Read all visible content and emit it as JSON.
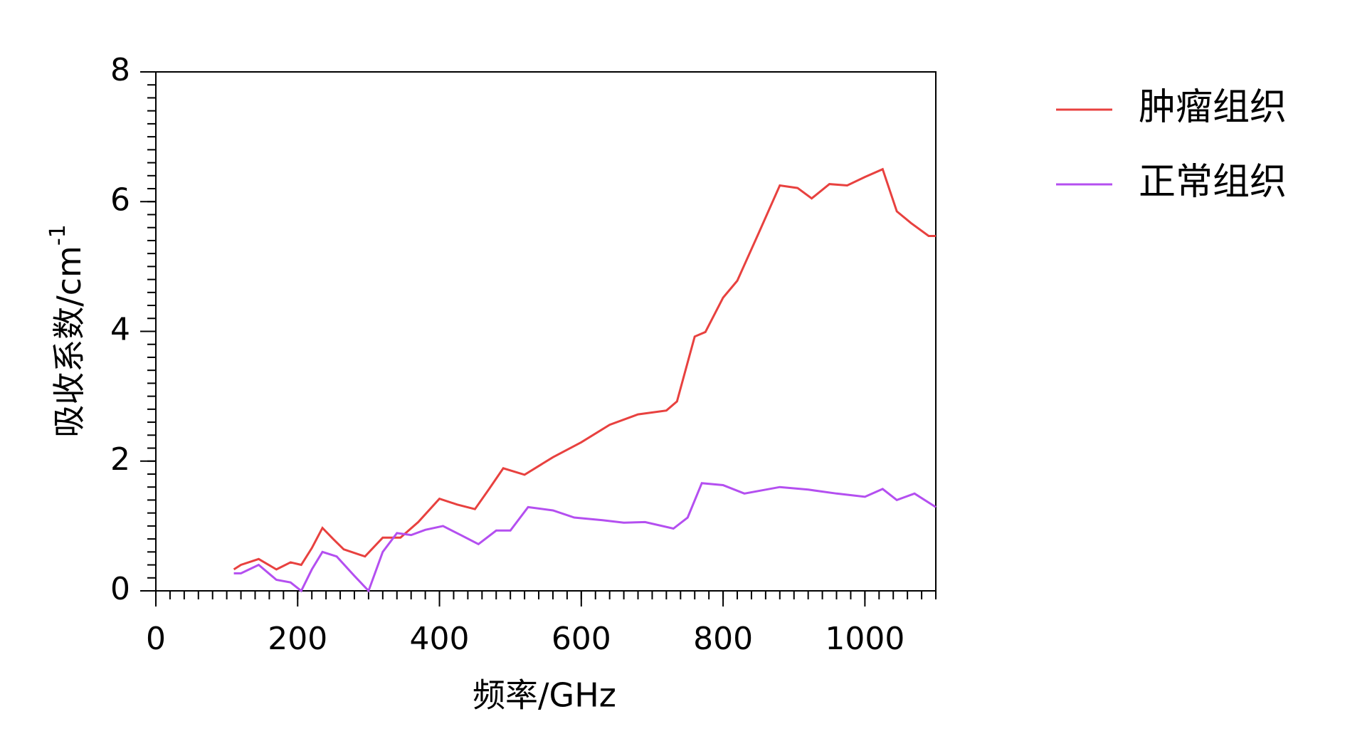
{
  "chart_data": {
    "type": "line",
    "x_label": "频率/GHz",
    "y_label": "吸收系数/cm",
    "y_label_sup": "-1",
    "xlim": [
      0,
      1100
    ],
    "ylim": [
      0,
      8
    ],
    "xticks": [
      0,
      200,
      400,
      600,
      800,
      1000
    ],
    "yticks": [
      0,
      2,
      4,
      6,
      8
    ],
    "x_minor_step": 20,
    "y_minor_step": 0.2,
    "legend": "outside-right",
    "series": [
      {
        "name": "肿瘤组织",
        "color": "#e8413f",
        "x": [
          110,
          120,
          145,
          170,
          190,
          205,
          220,
          235,
          250,
          265,
          295,
          320,
          345,
          370,
          400,
          425,
          450,
          470,
          490,
          520,
          560,
          600,
          640,
          680,
          720,
          735,
          760,
          775,
          800,
          820,
          850,
          880,
          905,
          925,
          950,
          975,
          1000,
          1025,
          1045,
          1065,
          1090,
          1100
        ],
        "values": [
          0.33,
          0.4,
          0.49,
          0.33,
          0.44,
          0.4,
          0.66,
          0.97,
          0.8,
          0.64,
          0.53,
          0.82,
          0.82,
          1.06,
          1.42,
          1.33,
          1.26,
          1.57,
          1.89,
          1.79,
          2.06,
          2.29,
          2.56,
          2.72,
          2.78,
          2.92,
          3.92,
          3.99,
          4.52,
          4.78,
          5.51,
          6.25,
          6.21,
          6.05,
          6.27,
          6.25,
          6.38,
          6.5,
          5.85,
          5.67,
          5.47,
          5.47
        ]
      },
      {
        "name": "正常组织",
        "color": "#b44ff0",
        "x": [
          110,
          120,
          145,
          170,
          190,
          205,
          220,
          235,
          255,
          280,
          300,
          320,
          340,
          360,
          380,
          405,
          430,
          455,
          480,
          500,
          525,
          560,
          590,
          630,
          660,
          690,
          730,
          750,
          770,
          800,
          830,
          880,
          920,
          960,
          1000,
          1025,
          1045,
          1070,
          1100
        ],
        "values": [
          0.27,
          0.27,
          0.4,
          0.17,
          0.13,
          0.0,
          0.33,
          0.6,
          0.53,
          0.23,
          0.0,
          0.6,
          0.89,
          0.86,
          0.94,
          1.0,
          0.86,
          0.72,
          0.93,
          0.93,
          1.29,
          1.24,
          1.13,
          1.09,
          1.05,
          1.06,
          0.96,
          1.13,
          1.66,
          1.63,
          1.5,
          1.6,
          1.56,
          1.5,
          1.45,
          1.57,
          1.4,
          1.5,
          1.29
        ]
      }
    ]
  }
}
